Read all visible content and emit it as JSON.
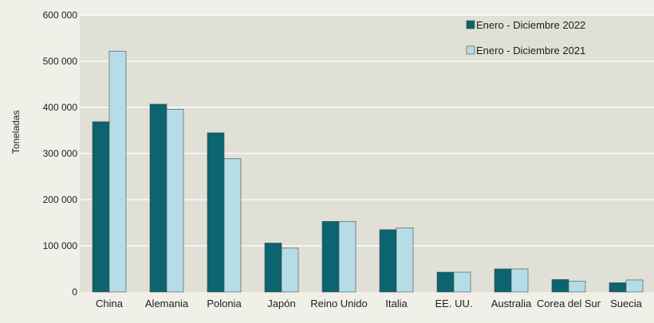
{
  "chart_data": {
    "type": "bar",
    "title": "",
    "xlabel": "",
    "ylabel": "Toneladas",
    "ylim": [
      0,
      600000
    ],
    "yticks": [
      0,
      100000,
      200000,
      300000,
      400000,
      500000,
      600000
    ],
    "ytick_labels": [
      "0",
      "100 000",
      "200 000",
      "300 000",
      "400 000",
      "500 000",
      "600 000"
    ],
    "grid": true,
    "legend_position": "top-right",
    "categories": [
      "China",
      "Alemania",
      "Polonia",
      "Japón",
      "Reino Unido",
      "Italia",
      "EE. UU.",
      "Australia",
      "Corea del Sur",
      "Suecia"
    ],
    "series": [
      {
        "name": "Enero - Diciembre 2022",
        "color": "#0b6470",
        "values": [
          369000,
          407000,
          345000,
          106000,
          153000,
          135000,
          43000,
          50000,
          27000,
          20000
        ]
      },
      {
        "name": "Enero - Diciembre 2021",
        "color": "#b4dde7",
        "values": [
          522000,
          396000,
          289000,
          95000,
          153000,
          139000,
          43000,
          50000,
          23000,
          26000
        ]
      }
    ],
    "colors": {
      "plot_background": "#e0e0d6",
      "page_background": "#f0efe8",
      "gridline": "#ffffff",
      "bar_outline": "#4a4a4a"
    }
  }
}
